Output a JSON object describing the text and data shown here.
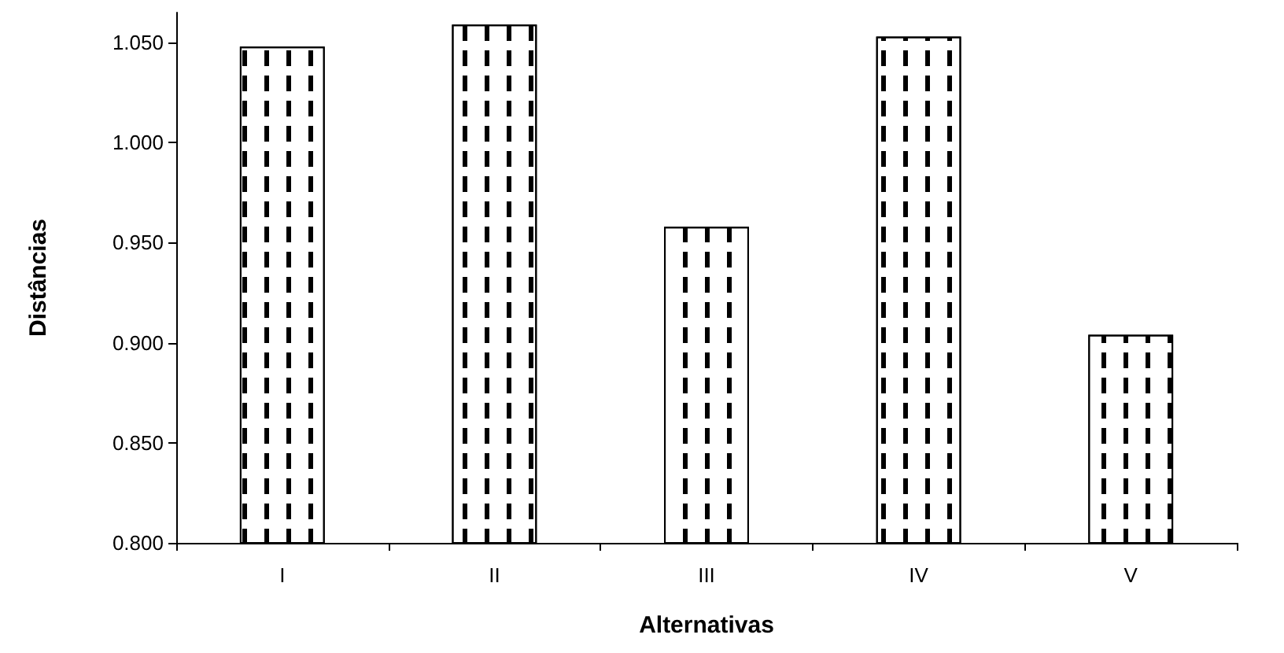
{
  "chart_data": {
    "type": "bar",
    "xlabel": "Alternativas",
    "ylabel": "Distâncias",
    "categories": [
      "I",
      "II",
      "III",
      "IV",
      "V"
    ],
    "values": [
      1.048,
      1.059,
      0.958,
      1.053,
      0.904
    ],
    "color": "#ffffff",
    "ylim": [
      0.8,
      1.065
    ],
    "yticks": [
      {
        "value": 0.8,
        "label": "0.800"
      },
      {
        "value": 0.85,
        "label": "0.850"
      },
      {
        "value": 0.9,
        "label": "0.900"
      },
      {
        "value": 0.95,
        "label": "0.950"
      },
      {
        "value": 1.0,
        "label": "1.000"
      },
      {
        "value": 1.05,
        "label": "1.050"
      }
    ],
    "grid": false
  }
}
